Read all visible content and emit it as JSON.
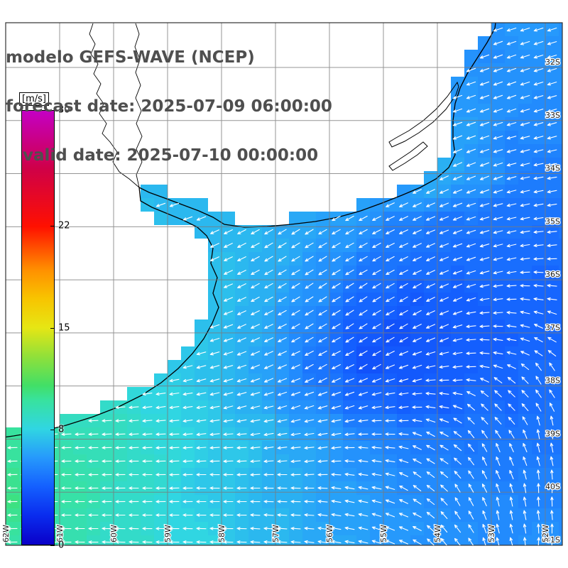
{
  "header": {
    "line1": "modelo GEFS-WAVE (NCEP)",
    "line2": "forecast date: 2025-07-09 06:00:00",
    "line3": "   valid date: 2025-07-10 00:00:00",
    "text_color": "#4f4f4f"
  },
  "colorbar": {
    "unit": "[m/s]",
    "min": 0,
    "max": 30,
    "tick_values": [
      30,
      22,
      15,
      8,
      0
    ],
    "stops": [
      {
        "v": 0,
        "c": "#0a00c8"
      },
      {
        "v": 2,
        "c": "#0a2cee"
      },
      {
        "v": 4,
        "c": "#145ffe"
      },
      {
        "v": 6,
        "c": "#2699fc"
      },
      {
        "v": 8,
        "c": "#30d6e2"
      },
      {
        "v": 10,
        "c": "#38e29e"
      },
      {
        "v": 11,
        "c": "#42df66"
      },
      {
        "v": 13,
        "c": "#90e03a"
      },
      {
        "v": 15,
        "c": "#e6e614"
      },
      {
        "v": 17,
        "c": "#f8c400"
      },
      {
        "v": 19,
        "c": "#ff9000"
      },
      {
        "v": 22,
        "c": "#ff1000"
      },
      {
        "v": 26,
        "c": "#cf0048"
      },
      {
        "v": 30,
        "c": "#c400c4"
      }
    ]
  },
  "axes": {
    "lat_labels": [
      "32S",
      "33S",
      "34S",
      "35S",
      "36S",
      "37S",
      "38S",
      "39S",
      "40S",
      "41S"
    ],
    "lon_labels": [
      "62W",
      "61W",
      "60W",
      "59W",
      "58W",
      "57W",
      "56W",
      "55W",
      "54W",
      "53W",
      "52W"
    ]
  },
  "map": {
    "arrow_color": "#ffffff",
    "land_polygon": [
      [
        702,
        -2
      ],
      [
        697,
        40
      ],
      [
        686,
        60
      ],
      [
        672,
        82
      ],
      [
        658,
        104
      ],
      [
        648,
        124
      ],
      [
        641,
        146
      ],
      [
        638,
        170
      ],
      [
        638,
        196
      ],
      [
        641,
        218
      ],
      [
        632,
        236
      ],
      [
        614,
        252
      ],
      [
        592,
        264
      ],
      [
        566,
        275
      ],
      [
        538,
        286
      ],
      [
        508,
        297
      ],
      [
        476,
        306
      ],
      [
        444,
        312
      ],
      [
        410,
        316
      ],
      [
        376,
        319
      ],
      [
        344,
        320
      ],
      [
        316,
        316
      ],
      [
        300,
        306
      ],
      [
        280,
        297
      ],
      [
        256,
        288
      ],
      [
        232,
        279
      ],
      [
        210,
        271
      ],
      [
        196,
        264
      ],
      [
        198,
        283
      ],
      [
        214,
        292
      ],
      [
        236,
        301
      ],
      [
        258,
        310
      ],
      [
        278,
        320
      ],
      [
        291,
        332
      ],
      [
        300,
        349
      ],
      [
        297,
        371
      ],
      [
        306,
        391
      ],
      [
        300,
        413
      ],
      [
        308,
        433
      ],
      [
        299,
        455
      ],
      [
        287,
        477
      ],
      [
        271,
        498
      ],
      [
        251,
        519
      ],
      [
        227,
        539
      ],
      [
        199,
        557
      ],
      [
        167,
        573
      ],
      [
        131,
        587
      ],
      [
        93,
        599
      ],
      [
        55,
        608
      ],
      [
        19,
        614
      ],
      [
        -2,
        617
      ],
      [
        -2,
        -2
      ]
    ],
    "lagoon_paths": [
      "M644,116 L630,136 L614,154 L596,170 L576,184 L558,194 L548,200 L552,207 L570,199 L590,187 L610,172 L628,154 L642,134 L646,122 Z",
      "M596,200 L578,214 L560,226 L548,234 L553,240 L570,230 L588,218 L602,206 Z"
    ],
    "river_paths": [
      "M196,264 L192,246 L200,228 L192,210 L200,192 L192,174 L199,156 L191,138 L198,120 L191,102 L197,84 L190,66 L196,48 L191,33",
      "M196,264 L182,252 L168,242 L159,228 L165,214 L155,200 L144,188 L150,174 L140,160 L146,146 L136,132 L142,118 L132,104 L138,90 L128,76 L134,62 L126,48 L131,33"
    ],
    "wind_samples": [
      [
        740,
        40,
        6.0,
        198
      ],
      [
        690,
        80,
        5.6,
        200
      ],
      [
        770,
        90,
        5.8,
        197
      ],
      [
        700,
        130,
        5.8,
        200
      ],
      [
        770,
        160,
        5.5,
        196
      ],
      [
        660,
        180,
        6.2,
        200
      ],
      [
        720,
        210,
        5.3,
        195
      ],
      [
        770,
        250,
        5.0,
        190
      ],
      [
        680,
        250,
        6.2,
        202
      ],
      [
        720,
        300,
        4.7,
        192
      ],
      [
        770,
        330,
        4.6,
        186
      ],
      [
        700,
        360,
        4.4,
        194
      ],
      [
        770,
        400,
        4.3,
        175
      ],
      [
        730,
        440,
        4.1,
        165
      ],
      [
        770,
        470,
        4.2,
        150
      ],
      [
        700,
        480,
        4.0,
        170
      ],
      [
        770,
        530,
        4.5,
        120
      ],
      [
        710,
        560,
        4.2,
        135
      ],
      [
        770,
        610,
        4.8,
        98
      ],
      [
        700,
        640,
        5.0,
        110
      ],
      [
        770,
        690,
        5.2,
        90
      ],
      [
        710,
        720,
        5.5,
        100
      ],
      [
        770,
        770,
        5.8,
        86
      ],
      [
        650,
        140,
        6.0,
        199
      ],
      [
        620,
        230,
        6.8,
        205
      ],
      [
        600,
        260,
        6.6,
        205
      ],
      [
        560,
        280,
        6.0,
        206
      ],
      [
        540,
        250,
        6.6,
        206
      ],
      [
        470,
        270,
        6.6,
        208
      ],
      [
        420,
        290,
        6.6,
        208
      ],
      [
        490,
        300,
        6.3,
        209
      ],
      [
        350,
        330,
        7.0,
        208
      ],
      [
        420,
        330,
        6.6,
        212
      ],
      [
        490,
        330,
        6.0,
        210
      ],
      [
        560,
        320,
        5.0,
        206
      ],
      [
        630,
        320,
        4.7,
        202
      ],
      [
        700,
        300,
        4.7,
        196
      ],
      [
        250,
        290,
        7.0,
        200
      ],
      [
        220,
        320,
        7.3,
        198
      ],
      [
        250,
        360,
        7.4,
        200
      ],
      [
        260,
        420,
        7.5,
        198
      ],
      [
        270,
        500,
        7.5,
        194
      ],
      [
        230,
        560,
        8.0,
        188
      ],
      [
        320,
        370,
        7.2,
        206
      ],
      [
        390,
        360,
        6.8,
        212
      ],
      [
        460,
        370,
        5.8,
        212
      ],
      [
        530,
        370,
        4.8,
        210
      ],
      [
        600,
        370,
        4.4,
        206
      ],
      [
        660,
        360,
        4.4,
        200
      ],
      [
        300,
        420,
        7.4,
        202
      ],
      [
        370,
        410,
        6.8,
        210
      ],
      [
        440,
        410,
        5.8,
        214
      ],
      [
        510,
        420,
        4.2,
        214
      ],
      [
        580,
        420,
        3.8,
        212
      ],
      [
        640,
        420,
        4.0,
        205
      ],
      [
        710,
        430,
        4.2,
        190
      ],
      [
        290,
        470,
        7.4,
        198
      ],
      [
        360,
        470,
        6.8,
        206
      ],
      [
        430,
        460,
        5.4,
        212
      ],
      [
        500,
        460,
        3.8,
        214
      ],
      [
        560,
        470,
        3.3,
        212
      ],
      [
        620,
        470,
        3.6,
        205
      ],
      [
        680,
        460,
        4.0,
        185
      ],
      [
        300,
        520,
        7.2,
        196
      ],
      [
        380,
        520,
        6.2,
        204
      ],
      [
        450,
        520,
        4.6,
        210
      ],
      [
        520,
        510,
        3.2,
        212
      ],
      [
        580,
        520,
        3.6,
        200
      ],
      [
        640,
        520,
        3.9,
        188
      ],
      [
        340,
        560,
        6.8,
        196
      ],
      [
        420,
        560,
        5.6,
        200
      ],
      [
        500,
        560,
        4.2,
        200
      ],
      [
        560,
        570,
        4.0,
        188
      ],
      [
        620,
        560,
        4.0,
        172
      ],
      [
        680,
        580,
        4.6,
        135
      ],
      [
        160,
        600,
        9.0,
        183
      ],
      [
        280,
        590,
        7.8,
        188
      ],
      [
        370,
        600,
        7.0,
        190
      ],
      [
        460,
        610,
        6.0,
        190
      ],
      [
        540,
        600,
        5.2,
        180
      ],
      [
        610,
        620,
        5.0,
        150
      ],
      [
        680,
        610,
        4.8,
        125
      ],
      [
        40,
        630,
        10.0,
        182
      ],
      [
        140,
        640,
        9.4,
        181
      ],
      [
        240,
        620,
        8.4,
        182
      ],
      [
        330,
        630,
        7.6,
        182
      ],
      [
        430,
        640,
        6.6,
        186
      ],
      [
        520,
        650,
        5.8,
        172
      ],
      [
        20,
        700,
        10.4,
        181
      ],
      [
        100,
        690,
        9.8,
        180
      ],
      [
        200,
        670,
        8.8,
        180
      ],
      [
        300,
        680,
        7.6,
        179
      ],
      [
        400,
        690,
        6.8,
        178
      ],
      [
        500,
        700,
        6.2,
        168
      ],
      [
        600,
        680,
        5.6,
        142
      ],
      [
        660,
        700,
        5.6,
        118
      ],
      [
        80,
        760,
        9.6,
        179
      ],
      [
        180,
        770,
        8.8,
        178
      ],
      [
        280,
        760,
        8.0,
        178
      ],
      [
        380,
        740,
        7.0,
        176
      ],
      [
        480,
        760,
        6.4,
        170
      ],
      [
        560,
        740,
        6.0,
        158
      ],
      [
        640,
        760,
        5.8,
        128
      ],
      [
        700,
        770,
        5.6,
        105
      ]
    ]
  }
}
